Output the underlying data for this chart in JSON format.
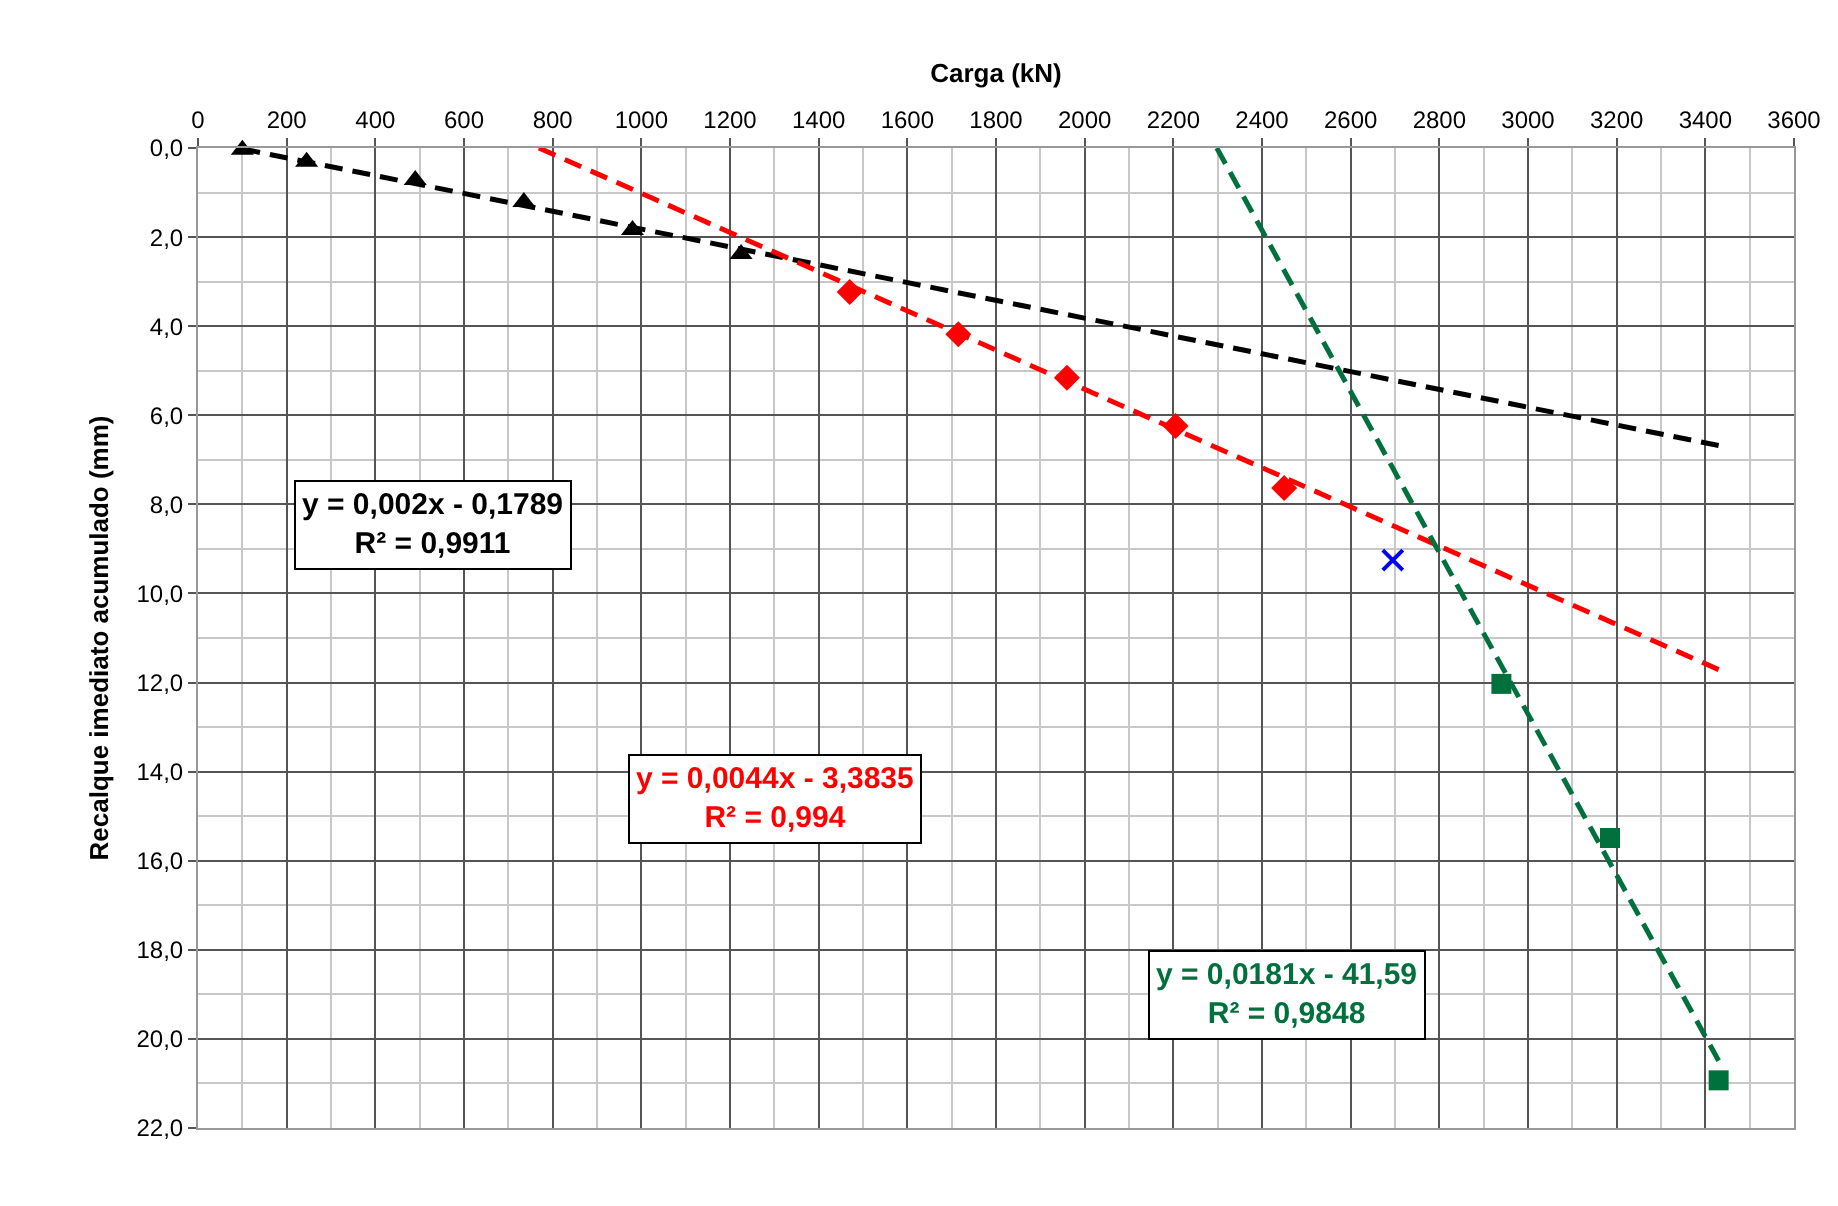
{
  "chart_data": {
    "type": "scatter",
    "xlabel": "Carga (kN)",
    "ylabel": "Recalque imediato acumulado (mm)",
    "xlim": [
      0,
      3600
    ],
    "xticks": [
      0,
      200,
      400,
      600,
      800,
      1000,
      1200,
      1400,
      1600,
      1800,
      2000,
      2200,
      2400,
      2600,
      2800,
      3000,
      3200,
      3400,
      3600
    ],
    "ylim": [
      22,
      0
    ],
    "yticks": [
      {
        "value": 0,
        "label": "0,0"
      },
      {
        "value": 2,
        "label": "2,0"
      },
      {
        "value": 4,
        "label": "4,0"
      },
      {
        "value": 6,
        "label": "6,0"
      },
      {
        "value": 8,
        "label": "8,0"
      },
      {
        "value": 10,
        "label": "10,0"
      },
      {
        "value": 12,
        "label": "12,0"
      },
      {
        "value": 14,
        "label": "14,0"
      },
      {
        "value": 16,
        "label": "16,0"
      },
      {
        "value": 18,
        "label": "18,0"
      },
      {
        "value": 20,
        "label": "20,0"
      },
      {
        "value": 22,
        "label": "22,0"
      }
    ],
    "grid": true,
    "series": [
      {
        "color": "#000000",
        "marker": "triangle",
        "x": [
          100,
          245,
          490,
          735,
          980,
          1225
        ],
        "values": [
          0.04,
          0.31,
          0.72,
          1.21,
          1.84,
          2.38
        ]
      },
      {
        "color": "#ff0000",
        "marker": "diamond",
        "x": [
          1470,
          1715,
          1960,
          2205,
          2450
        ],
        "values": [
          3.23,
          4.18,
          5.16,
          6.24,
          7.63
        ]
      },
      {
        "color": "#0000ff",
        "marker": "cross",
        "x": [
          2695
        ],
        "values": [
          9.25
        ]
      },
      {
        "color": "#00703c",
        "marker": "square",
        "x": [
          2940,
          3185,
          3430
        ],
        "values": [
          12.03,
          15.49,
          20.93
        ]
      },
      {
        "type": "line",
        "color": "#000000",
        "marker": "none",
        "line_style": "dashed",
        "x": [
          100,
          3430
        ],
        "values": [
          0.02,
          6.68
        ]
      },
      {
        "type": "line",
        "color": "#ff0000",
        "marker": "none",
        "line_style": "dashed",
        "x": [
          769,
          3430
        ],
        "values": [
          0,
          11.71
        ]
      },
      {
        "type": "line",
        "color": "#00703c",
        "marker": "none",
        "line_style": "dashed",
        "x": [
          2298,
          3430
        ],
        "values": [
          0,
          20.49
        ]
      }
    ],
    "annotations": [
      "y = 0,002x - 0,1789\nR² = 0,9911",
      "y = 0,0044x - 3,3835\nR² = 0,994",
      "y = 0,0181x - 41,59\nR² = 0,9848"
    ]
  }
}
